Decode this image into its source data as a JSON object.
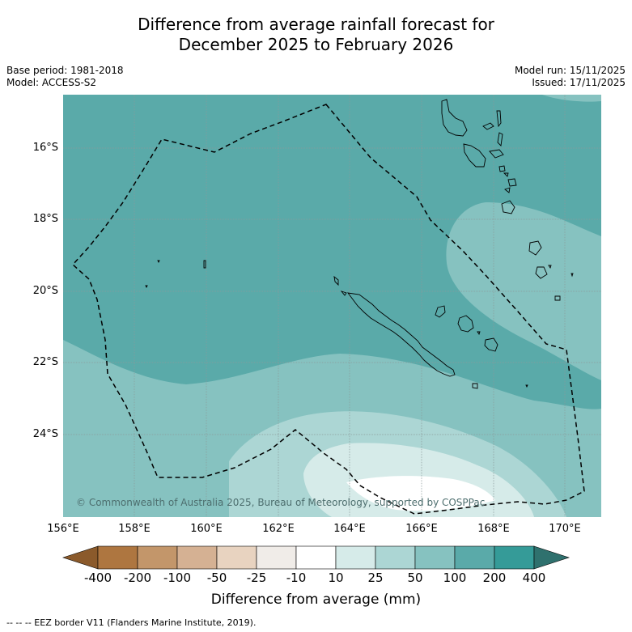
{
  "title_line1": "Difference from average rainfall forecast for",
  "title_line2": "December 2025 to February 2026",
  "base_period": "Base period: 1981-2018",
  "model": "Model: ACCESS-S2",
  "model_run": "Model run: 15/11/2025",
  "issued": "Issued: 17/11/2025",
  "lat_labels": [
    "16°S",
    "18°S",
    "20°S",
    "22°S",
    "24°S"
  ],
  "lon_labels": [
    "156°E",
    "158°E",
    "160°E",
    "162°E",
    "164°E",
    "166°E",
    "168°E",
    "170°E"
  ],
  "copyright": "© Commonwealth of Australia 2025, Bureau of Meteorology, supported by COSPPac",
  "colorbar": {
    "ticks": [
      "-400",
      "-200",
      "-100",
      "-50",
      "-25",
      "-10",
      "10",
      "25",
      "50",
      "100",
      "200",
      "400"
    ],
    "colors": [
      "#8b5a2b",
      "#ae7640",
      "#c3966a",
      "#d5b193",
      "#e8d3c0",
      "#f0ece8",
      "#ffffff",
      "#d6ebe9",
      "#acd6d4",
      "#86c2c0",
      "#5aaaa9",
      "#359b98",
      "#2f716e"
    ],
    "title": "Difference from average (mm)"
  },
  "legend_note": "--  --  -- EEZ border V11 (Flanders Marine Institute, 2019)."
}
